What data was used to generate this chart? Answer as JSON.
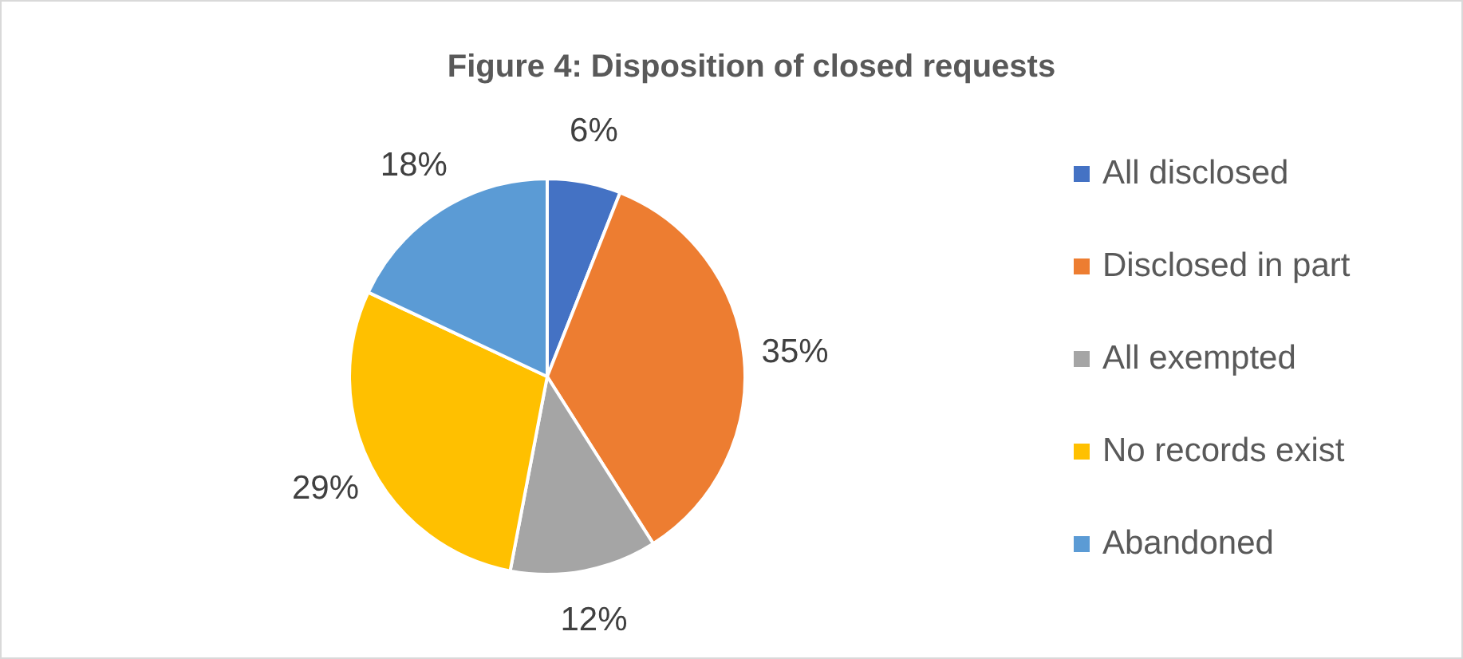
{
  "chart_data": {
    "type": "pie",
    "title": "Figure 4: Disposition of closed requests",
    "categories": [
      "All disclosed",
      "Disclosed in part",
      "All exempted",
      "No records exist",
      "Abandoned"
    ],
    "values": [
      6,
      35,
      12,
      29,
      18
    ],
    "value_labels": [
      "6%",
      "35%",
      "12%",
      "29%",
      "18%"
    ],
    "colors": [
      "#4472c4",
      "#ed7d31",
      "#a5a5a5",
      "#ffc000",
      "#5b9bd5"
    ],
    "legend": "right"
  }
}
